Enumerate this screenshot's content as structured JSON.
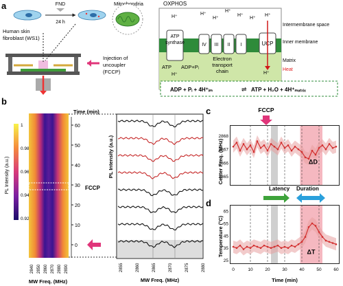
{
  "panels": {
    "a": {
      "label": "a",
      "fnd": "FND",
      "time": "24 h",
      "cell": "Human skin\nfibroblast (WS1)",
      "mito": "Mitochondria",
      "oxphos": "OXPHOS",
      "inject": "Injection of\nuncoupler\n(FCCP)",
      "h": "H⁺",
      "atp_synthase": "ATP\nsynthase",
      "etc": "Electron\ntransport\nchain",
      "complexes": [
        "IV",
        "III",
        "II",
        "I"
      ],
      "ucp": "UCP",
      "atp": "ATP",
      "adp": "ADP+Pᵢ",
      "intermembrane": "Intermembrane space",
      "inner": "Inner membrane",
      "matrix": "Matrix",
      "heat": "Heat",
      "equation_left": "ADP + Pᵢ + 4H⁺ᵢₘ",
      "equation_right": "ATP + H₂O + 4H⁺ₘₐₜᵣᵢₓ",
      "colors": {
        "membrane": "#2e8b3a",
        "matrix_bg": "#cfe6a8",
        "heat": "#e11d1d",
        "ucp_arrow": "#d01818",
        "inject_arrow": "#e0357a"
      }
    },
    "b": {
      "label": "b",
      "colorbar_title": "PL Intensity (a.u.)",
      "colorbar_ticks": [
        "1",
        "0.98",
        "0.96",
        "0.94",
        "0.92"
      ],
      "heatmap_x_ticks": [
        "2840",
        "2850",
        "2860",
        "2870",
        "2880",
        "2890"
      ],
      "heatmap_xlabel": "MW Freq. (MHz)",
      "time_label": "Time (min)",
      "time_ticks": [
        "60",
        "50",
        "40",
        "30",
        "20",
        "10",
        "0"
      ],
      "fccp": "FCCP",
      "spectra_ylabel": "PL Intensity (a.u.)",
      "spectra_xlabel": "MW Freq. (MHz)",
      "spectra_x_ticks": [
        "2855",
        "2860",
        "2865",
        "2870",
        "2875",
        "2880"
      ]
    },
    "c": {
      "label": "c",
      "fccp": "FCCP",
      "ylabel": "Center Freq. (MHz)",
      "y_ticks": [
        "2868",
        "2867",
        "2866",
        "2865"
      ],
      "delta": "ΔD"
    },
    "d": {
      "label": "d",
      "latency": "Latency",
      "duration": "Duration",
      "ylabel": "Temperature (°C)",
      "y_ticks": [
        "65",
        "55",
        "45",
        "35",
        "25"
      ],
      "x_ticks": [
        "0",
        "10",
        "20",
        "30",
        "40",
        "50",
        "60"
      ],
      "xlabel": "Time (min)",
      "delta": "ΔT"
    }
  },
  "chart_data": [
    {
      "type": "line",
      "panel": "c",
      "ylabel": "Center Freq. (MHz)",
      "xlabel": "Time (min)",
      "ylim": [
        2864.3,
        2868.8
      ],
      "xlim": [
        -2,
        62
      ],
      "x": [
        0,
        2,
        4,
        6,
        8,
        10,
        12,
        14,
        16,
        18,
        20,
        22,
        24,
        26,
        28,
        30,
        32,
        34,
        36,
        38,
        40,
        42,
        44,
        46,
        48,
        50,
        52,
        54,
        56,
        58,
        60
      ],
      "series": [
        {
          "values": [
            2867.2,
            2867.5,
            2866.9,
            2867.4,
            2867.0,
            2867.3,
            2866.8,
            2867.6,
            2867.1,
            2867.3,
            2866.9,
            2867.4,
            2867.2,
            2867.0,
            2867.5,
            2867.1,
            2867.3,
            2866.9,
            2867.2,
            2867.0,
            2866.8,
            2866.4,
            2866.3,
            2866.9,
            2866.6,
            2867.1,
            2867.3,
            2867.0,
            2867.4,
            2867.1,
            2867.2
          ]
        }
      ]
    },
    {
      "type": "line",
      "panel": "d",
      "ylabel": "Temperature (°C)",
      "xlabel": "Time (min)",
      "ylim": [
        22,
        70
      ],
      "xlim": [
        -2,
        62
      ],
      "x": [
        0,
        2,
        4,
        6,
        8,
        10,
        12,
        14,
        16,
        18,
        20,
        22,
        24,
        26,
        28,
        30,
        32,
        34,
        36,
        38,
        40,
        42,
        44,
        46,
        48,
        50,
        52,
        54,
        56,
        58,
        60
      ],
      "series": [
        {
          "values": [
            36,
            35,
            37,
            34,
            36,
            35,
            37,
            36,
            35,
            37,
            36,
            35,
            36,
            37,
            35,
            36,
            35,
            37,
            36,
            38,
            40,
            44,
            52,
            55,
            53,
            48,
            44,
            41,
            40,
            39,
            38
          ]
        }
      ]
    }
  ]
}
